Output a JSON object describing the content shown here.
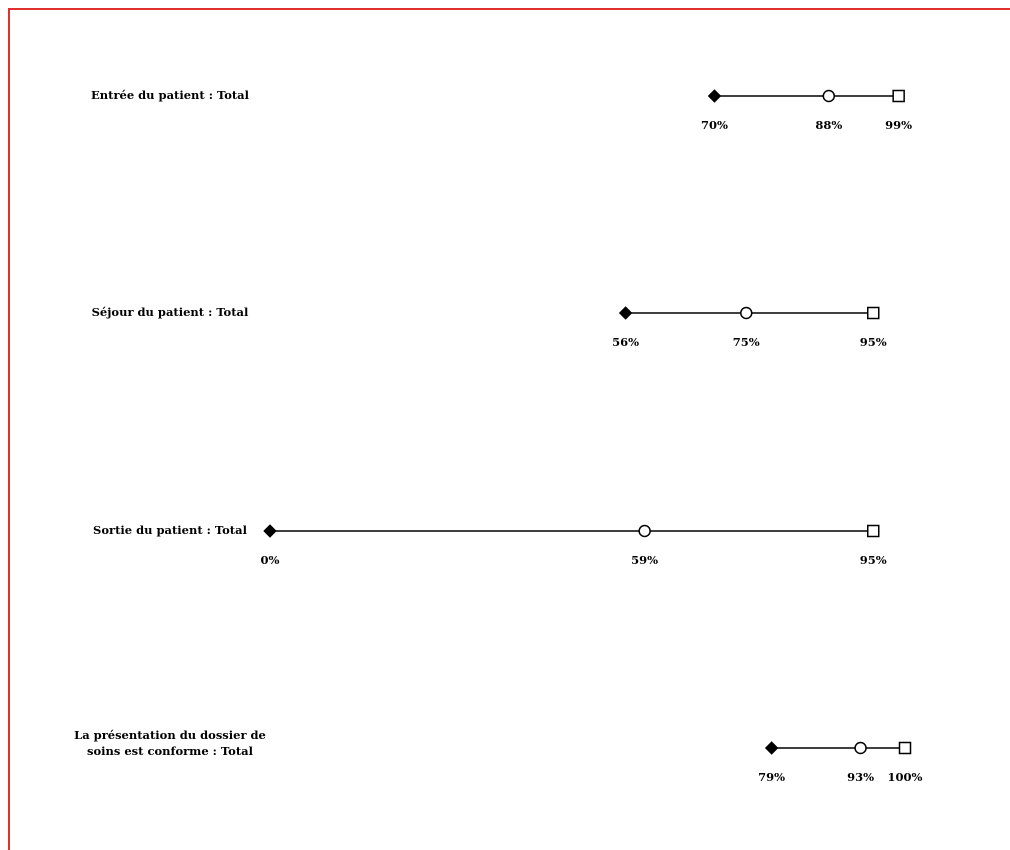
{
  "chart_data": {
    "type": "dot-range",
    "xlim": [
      0,
      100
    ],
    "unit": "%",
    "markers": [
      "min",
      "mean",
      "max"
    ],
    "rows": [
      {
        "category": "Entrée du patient : Total",
        "min": 70,
        "mean": 88,
        "max": 99,
        "labels": [
          "70%",
          "88%",
          "99%"
        ]
      },
      {
        "category": "Séjour du patient : Total",
        "min": 56,
        "mean": 75,
        "max": 95,
        "labels": [
          "56%",
          "75%",
          "95%"
        ]
      },
      {
        "category": "Sortie du patient : Total",
        "min": 0,
        "mean": 59,
        "max": 95,
        "labels": [
          "0%",
          "59%",
          "95%"
        ]
      },
      {
        "category": [
          "La présentation du dossier de",
          "soins est conforme : Total"
        ],
        "min": 79,
        "mean": 93,
        "max": 100,
        "labels": [
          "79%",
          "93%",
          "100%"
        ]
      }
    ]
  },
  "colors": {
    "frame": "#e03030",
    "ink": "#000000"
  }
}
